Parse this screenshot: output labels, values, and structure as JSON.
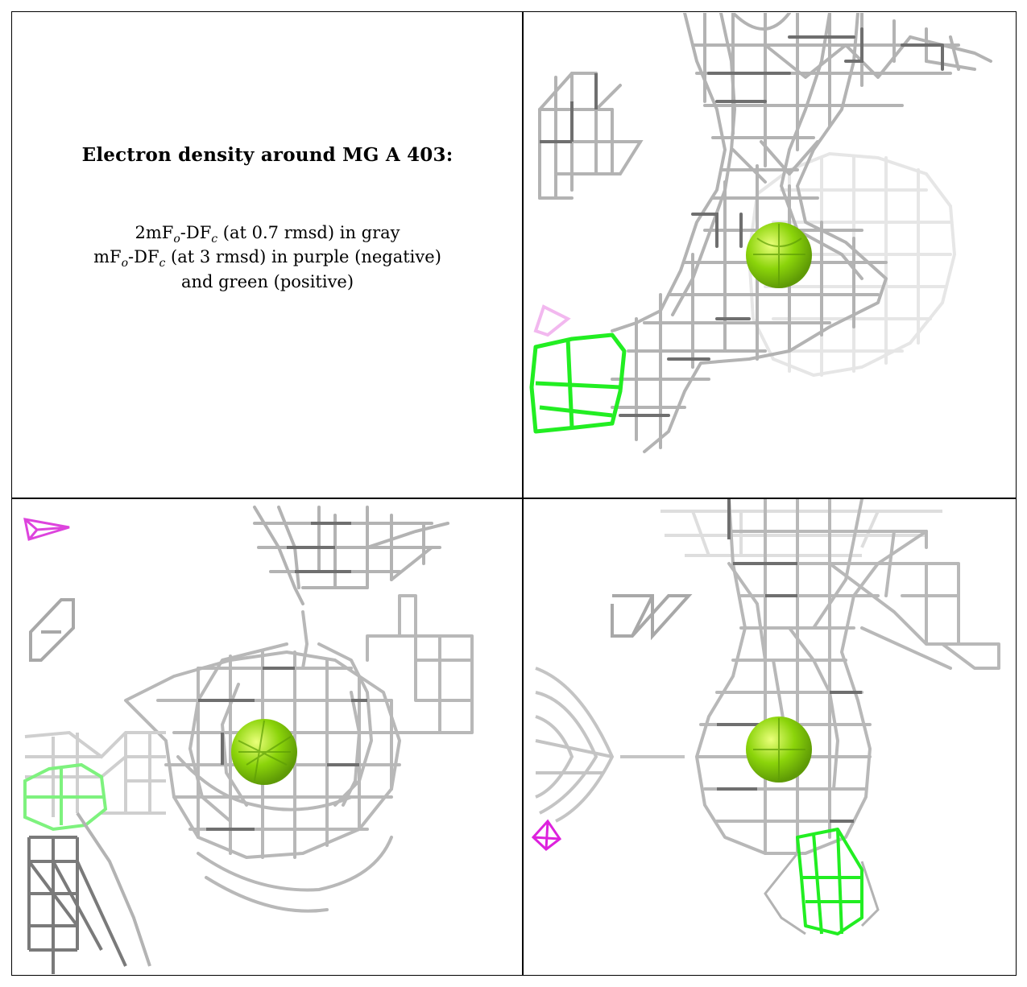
{
  "caption": {
    "title": "Electron density around MG A 403:",
    "line1": {
      "prefix": "2mF",
      "o": "o",
      "mid": "-DF",
      "c": "c",
      "suffix": " (at 0.7 rmsd) in gray"
    },
    "line2": {
      "prefix": "mF",
      "o": "o",
      "mid": "-DF",
      "c": "c",
      "suffix": " (at 3 rmsd) in purple (negative)"
    },
    "line3": "and green (positive)"
  },
  "colors": {
    "mesh_gray": "#a8a8a8",
    "mesh_dark": "#6a6a6a",
    "mesh_light": "#dcdcdc",
    "positive_green": "#22ee22",
    "negative_purple": "#dd22dd",
    "mg_sphere": "#8bd40a"
  },
  "panels": [
    {
      "name": "view-top-right"
    },
    {
      "name": "view-bottom-left"
    },
    {
      "name": "view-bottom-right"
    }
  ]
}
